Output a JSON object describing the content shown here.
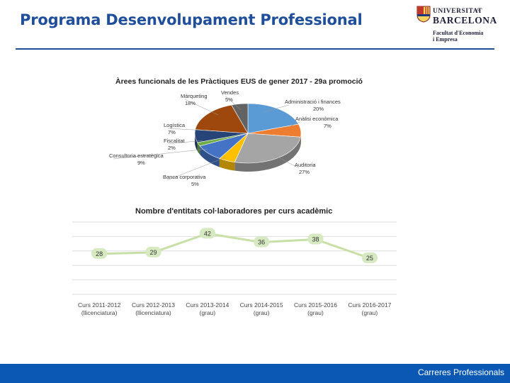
{
  "header": {
    "title": "Programa Desenvolupament Professional"
  },
  "logo": {
    "university": "UNIVERSITAT",
    "university_sup": "DE",
    "city": "BARCELONA",
    "faculty_line1": "Facultat d'Economia",
    "faculty_line2": "i Empresa"
  },
  "footer": {
    "text": "Carreres Professionals"
  },
  "colors": {
    "brand_blue": "#1f4e9b",
    "footer_blue": "#0a58b3",
    "line_green": "#c8dfa6",
    "label_green": "#d6e9c0"
  },
  "chart_data": [
    {
      "type": "pie",
      "title": "Àrees funcionals de les Pràctiques EUS de gener 2017 - 29a promoció",
      "slices": [
        {
          "name": "Administració i finances",
          "value_label": "20%",
          "value": 20,
          "color": "#5b9bd5"
        },
        {
          "name": "Anàlisi econòmica",
          "value_label": "7%",
          "value": 7,
          "color": "#ed7d31"
        },
        {
          "name": "Auditoria",
          "value_label": "27%",
          "value": 27,
          "color": "#a5a5a5"
        },
        {
          "name": "Banca corporativa",
          "value_label": "5%",
          "value": 5,
          "color": "#ffc000"
        },
        {
          "name": "Consultoria estratègica",
          "value_label": "9%",
          "value": 9,
          "color": "#4472c4"
        },
        {
          "name": "Fiscalitat",
          "value_label": "2%",
          "value": 2,
          "color": "#70ad47"
        },
        {
          "name": "Logística",
          "value_label": "7%",
          "value": 7,
          "color": "#264478"
        },
        {
          "name": "Màrqueting",
          "value_label": "18%",
          "value": 18,
          "color": "#9e480e"
        },
        {
          "name": "Vendes",
          "value_label": "5%",
          "value": 5,
          "color": "#636363"
        }
      ]
    },
    {
      "type": "line",
      "title": "Nombre d'entitats col·laboradores per curs acadèmic",
      "categories": [
        [
          "Curs 2011-2012",
          "(llicenciatura)"
        ],
        [
          "Curs 2012-2013",
          "(llicenciatura)"
        ],
        [
          "Curs 2013-2014",
          "(grau)"
        ],
        [
          "Curs 2014-2015",
          "(grau)"
        ],
        [
          "Curs 2015-2016",
          "(grau)"
        ],
        [
          "Curs 2016-2017",
          "(grau)"
        ]
      ],
      "values": [
        28,
        29,
        42,
        36,
        38,
        25
      ],
      "ylim": [
        0,
        50
      ],
      "grid": true,
      "legend": "none"
    }
  ]
}
